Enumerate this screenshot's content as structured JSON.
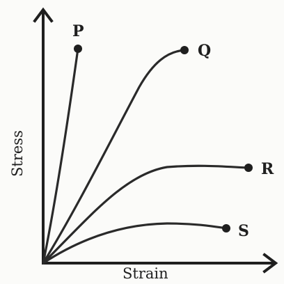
{
  "diagram": {
    "axes": {
      "x_label": "Strain",
      "y_label": "Stress"
    },
    "curves": [
      {
        "id": "P",
        "label": "P"
      },
      {
        "id": "Q",
        "label": "Q"
      },
      {
        "id": "R",
        "label": "R"
      },
      {
        "id": "S",
        "label": "S"
      }
    ],
    "colors": {
      "ink": "#1f1f1f",
      "background": "#fbfbf9"
    }
  }
}
